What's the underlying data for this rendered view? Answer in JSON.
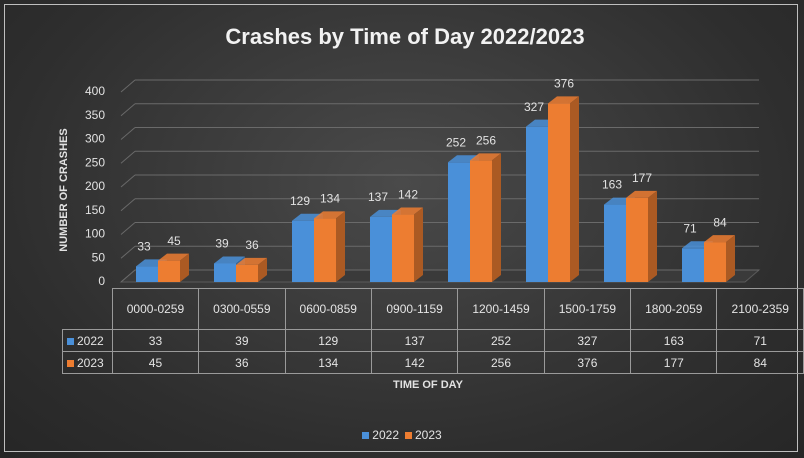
{
  "chart_data": {
    "type": "bar3d",
    "title": "Crashes  by Time of Day 2022/2023",
    "y_label": "NUMBER OF CRASHES",
    "x_label": "TIME OF DAY",
    "categories": [
      "0000-0259",
      "0300-0559",
      "0600-0859",
      "0900-1159",
      "1200-1459",
      "1500-1759",
      "1800-2059",
      "2100-2359"
    ],
    "series": [
      {
        "name": "2022",
        "color": "#4a90d9",
        "values": [
          33,
          39,
          129,
          137,
          252,
          327,
          163,
          71
        ]
      },
      {
        "name": "2023",
        "color": "#ed7d31",
        "values": [
          45,
          36,
          134,
          142,
          256,
          376,
          177,
          84
        ]
      }
    ],
    "ylim": [
      0,
      400
    ],
    "yticks": [
      0,
      50,
      100,
      150,
      200,
      250,
      300,
      350,
      400
    ],
    "grid": true,
    "data_table": true,
    "legend": "bottom"
  }
}
